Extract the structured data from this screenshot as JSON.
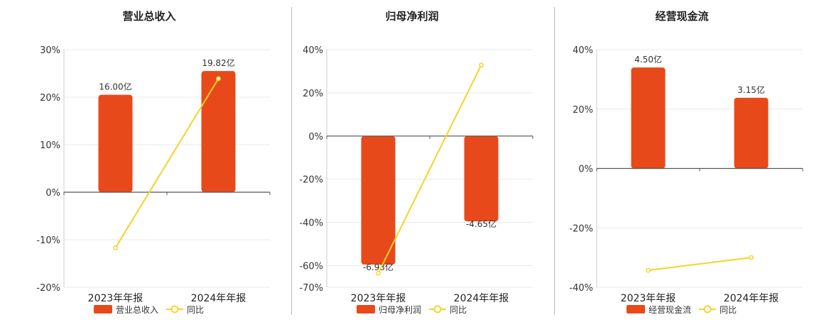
{
  "chart_data": [
    {
      "type": "bar",
      "title": "营业总收入",
      "categories": [
        "2023年年报",
        "2024年年报"
      ],
      "ylim": [
        -20,
        30
      ],
      "yticks": [
        -20,
        -10,
        0,
        10,
        20,
        30
      ],
      "ytick_labels": [
        "-20%",
        "-10%",
        "0%",
        "10%",
        "20%",
        "30%"
      ],
      "series": [
        {
          "name": "营业总收入",
          "kind": "bar",
          "values": [
            20.5,
            25.5
          ],
          "labels": [
            "16.00亿",
            "19.82亿"
          ]
        },
        {
          "name": "同比",
          "kind": "line",
          "values": [
            -11.7,
            23.9
          ]
        }
      ],
      "legend": "bottom"
    },
    {
      "type": "bar",
      "title": "归母净利润",
      "categories": [
        "2023年年报",
        "2024年年报"
      ],
      "ylim": [
        -70,
        40
      ],
      "yticks": [
        -70,
        -60,
        -40,
        -20,
        0,
        20,
        40
      ],
      "ytick_labels": [
        "-70%",
        "-60%",
        "-40%",
        "-20%",
        "0%",
        "20%",
        "40%"
      ],
      "series": [
        {
          "name": "归母净利润",
          "kind": "bar",
          "values": [
            -59.5,
            -39.5
          ],
          "labels": [
            "-6.93亿",
            "-4.65亿"
          ]
        },
        {
          "name": "同比",
          "kind": "line",
          "values": [
            -63.5,
            32.9
          ]
        }
      ],
      "legend": "bottom"
    },
    {
      "type": "bar",
      "title": "经营现金流",
      "categories": [
        "2023年年报",
        "2024年年报"
      ],
      "ylim": [
        -40,
        40
      ],
      "yticks": [
        -40,
        -20,
        0,
        20,
        40
      ],
      "ytick_labels": [
        "-40%",
        "-20%",
        "0%",
        "20%",
        "40%"
      ],
      "series": [
        {
          "name": "经营现金流",
          "kind": "bar",
          "values": [
            34,
            23.8
          ],
          "labels": [
            "4.50亿",
            "3.15亿"
          ]
        },
        {
          "name": "同比",
          "kind": "line",
          "values": [
            -34.3,
            -30
          ]
        }
      ],
      "legend": "bottom"
    }
  ],
  "colors": {
    "bar": "#e8491a",
    "line": "#f5d327",
    "grid": "#e8e8e8",
    "axis": "#555555",
    "text": "#333333"
  }
}
